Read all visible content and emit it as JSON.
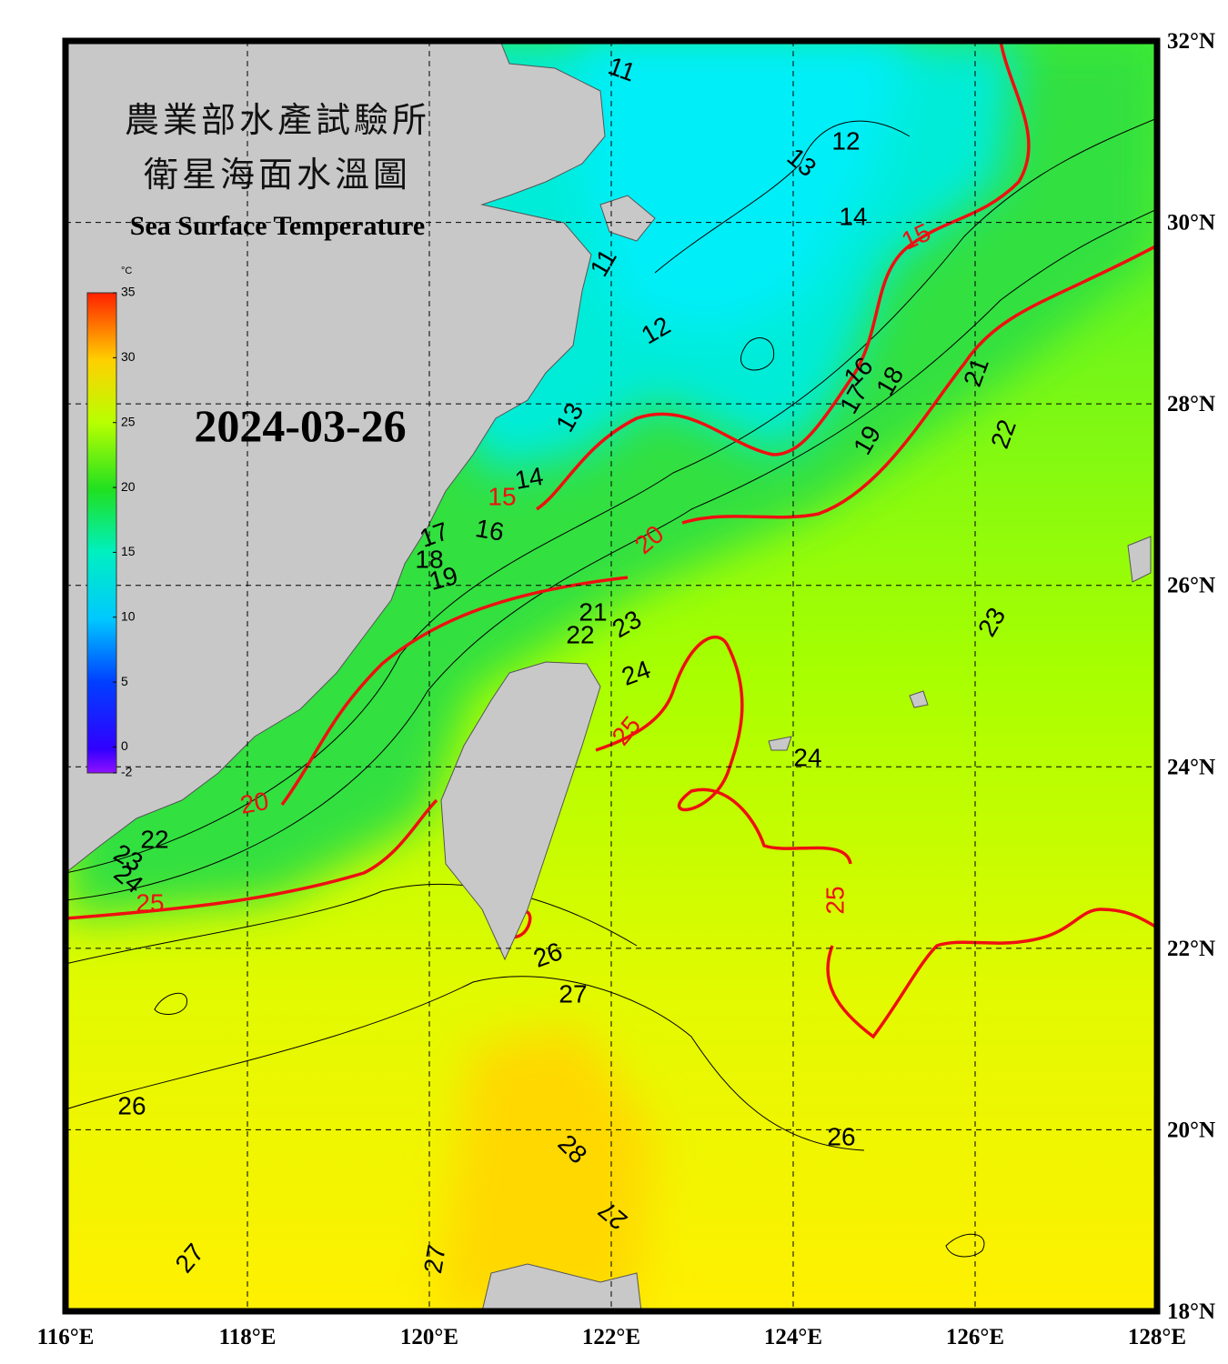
{
  "title_zh_1": "農業部水產試驗所",
  "title_zh_2": "衛星海面水溫圖",
  "title_en": "Sea Surface Temperature",
  "date": "2024-03-26",
  "colorbar": {
    "unit": "°C",
    "range": [
      -2,
      35
    ],
    "ticks": [
      35,
      30,
      25,
      20,
      15,
      10,
      5,
      0,
      -2
    ]
  },
  "map": {
    "lon_range": [
      116,
      128
    ],
    "lat_range": [
      18,
      32
    ],
    "lon_ticks": [
      {
        "value": 116,
        "label": "116°E"
      },
      {
        "value": 118,
        "label": "118°E"
      },
      {
        "value": 120,
        "label": "120°E"
      },
      {
        "value": 122,
        "label": "122°E"
      },
      {
        "value": 124,
        "label": "124°E"
      },
      {
        "value": 126,
        "label": "126°E"
      },
      {
        "value": 128,
        "label": "128°E"
      }
    ],
    "lat_ticks": [
      {
        "value": 18,
        "label": "18°N"
      },
      {
        "value": 20,
        "label": "20°N"
      },
      {
        "value": 22,
        "label": "22°N"
      },
      {
        "value": 24,
        "label": "24°N"
      },
      {
        "value": 26,
        "label": "26°N"
      },
      {
        "value": 28,
        "label": "28°N"
      },
      {
        "value": 30,
        "label": "30°N"
      },
      {
        "value": 32,
        "label": "32°N"
      }
    ],
    "contour_labels": [
      11,
      12,
      13,
      14,
      15,
      11,
      12,
      13,
      14,
      15,
      16,
      17,
      18,
      19,
      20,
      16,
      17,
      18,
      19,
      21,
      22,
      21,
      22,
      23,
      24,
      25,
      23,
      24,
      20,
      22,
      23,
      24,
      25,
      25,
      26,
      27,
      26,
      26,
      28,
      27,
      27,
      27
    ]
  }
}
